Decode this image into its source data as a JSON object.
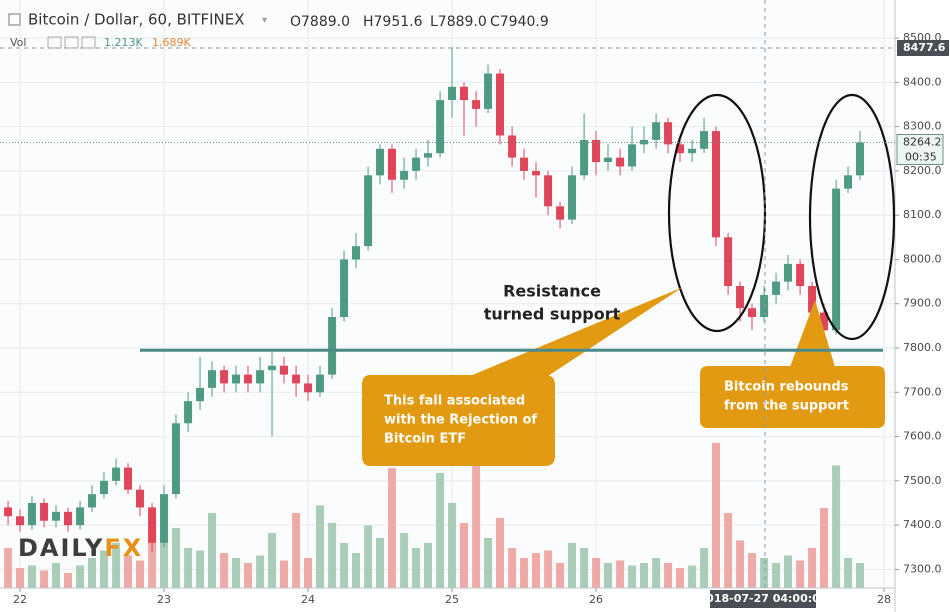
{
  "chart_data": {
    "type": "candlestick",
    "title": "Bitcoin / Dollar, 60, BITFINEX",
    "ohlc_labels": [
      "O7889.0",
      "H7951.6",
      "L7889.0",
      "C7940.9"
    ],
    "volume_label": "Vol",
    "volume_values": [
      "1.213K",
      "1.689K"
    ],
    "up_color": "#4f9a82",
    "down_color": "#e0465a",
    "volume_up_color": "#a9cdb7",
    "volume_down_color": "#eeaaa6",
    "xlim": [
      21.861,
      28.076
    ],
    "xticks": [
      22,
      23,
      24,
      25,
      26,
      28
    ],
    "ylim": [
      7258,
      8586
    ],
    "yticks": [
      {
        "value": 8500,
        "label": "8500.0"
      },
      {
        "value": 8400,
        "label": "8400.0"
      },
      {
        "value": 8300,
        "label": "8300.0"
      },
      {
        "value": 8200,
        "label": "8200.0"
      },
      {
        "value": 8100,
        "label": "8100.0"
      },
      {
        "value": 8000,
        "label": "8000.0"
      },
      {
        "value": 7900,
        "label": "7900.0"
      },
      {
        "value": 7800,
        "label": "7800.0"
      },
      {
        "value": 7700,
        "label": "7700.0"
      },
      {
        "value": 7600,
        "label": "7600.0"
      },
      {
        "value": 7500,
        "label": "7500.0"
      },
      {
        "value": 7400,
        "label": "7400.0"
      },
      {
        "value": 7300,
        "label": "7300.0"
      }
    ],
    "y2lim": [
      0,
      23.5
    ],
    "grid": true,
    "x": [
      21.917,
      22.0,
      22.083,
      22.167,
      22.25,
      22.333,
      22.417,
      22.5,
      22.583,
      22.667,
      22.75,
      22.833,
      22.917,
      23.0,
      23.083,
      23.167,
      23.25,
      23.333,
      23.417,
      23.5,
      23.583,
      23.667,
      23.75,
      23.833,
      23.917,
      24.0,
      24.083,
      24.167,
      24.25,
      24.333,
      24.417,
      24.5,
      24.583,
      24.667,
      24.75,
      24.833,
      24.917,
      25.0,
      25.083,
      25.167,
      25.25,
      25.333,
      25.417,
      25.5,
      25.583,
      25.667,
      25.75,
      25.833,
      25.917,
      26.0,
      26.083,
      26.167,
      26.25,
      26.333,
      26.417,
      26.5,
      26.583,
      26.667,
      26.75,
      26.833,
      26.917,
      27.0,
      27.083,
      27.167,
      27.25,
      27.333,
      27.417,
      27.5,
      27.583,
      27.667,
      27.75,
      27.833
    ],
    "open": [
      7440,
      7420,
      7400,
      7450,
      7410,
      7430,
      7400,
      7440,
      7470,
      7500,
      7530,
      7480,
      7440,
      7360,
      7470,
      7630,
      7680,
      7710,
      7750,
      7720,
      7740,
      7720,
      7750,
      7760,
      7740,
      7720,
      7700,
      7740,
      7870,
      8000,
      8030,
      8190,
      8250,
      8180,
      8200,
      8230,
      8240,
      8360,
      8390,
      8360,
      8340,
      8420,
      8280,
      8230,
      8200,
      8190,
      8120,
      8090,
      8190,
      8270,
      8220,
      8230,
      8210,
      8260,
      8270,
      8310,
      8260,
      8240,
      8250,
      8290,
      8050,
      7940,
      7890,
      7870,
      7920,
      7950,
      7990,
      7940,
      7880,
      7840,
      8160,
      8190
    ],
    "high": [
      7455,
      7435,
      7465,
      7460,
      7445,
      7440,
      7455,
      7490,
      7520,
      7550,
      7540,
      7490,
      7450,
      7490,
      7650,
      7700,
      7780,
      7770,
      7760,
      7760,
      7760,
      7780,
      7790,
      7780,
      7760,
      7740,
      7760,
      7890,
      8020,
      8060,
      8210,
      8260,
      8260,
      8230,
      8250,
      8270,
      8380,
      8480,
      8400,
      8380,
      8440,
      8430,
      8300,
      8250,
      8220,
      8200,
      8130,
      8210,
      8330,
      8290,
      8260,
      8250,
      8300,
      8300,
      8330,
      8320,
      8280,
      8270,
      8320,
      8300,
      8060,
      7950,
      7900,
      7940,
      7970,
      8010,
      8000,
      7950,
      7900,
      8180,
      8210,
      8290
    ],
    "low": [
      7400,
      7385,
      7390,
      7395,
      7395,
      7385,
      7390,
      7430,
      7460,
      7490,
      7470,
      7420,
      7340,
      7350,
      7460,
      7610,
      7660,
      7690,
      7700,
      7700,
      7700,
      7700,
      7600,
      7720,
      7690,
      7680,
      7690,
      7730,
      7860,
      7980,
      8020,
      8170,
      8150,
      8160,
      8180,
      8210,
      8230,
      8320,
      8280,
      8300,
      8330,
      8260,
      8210,
      8180,
      8140,
      8100,
      8070,
      8080,
      8180,
      8190,
      8200,
      8190,
      8200,
      8240,
      8250,
      8240,
      8220,
      8220,
      8240,
      8030,
      7920,
      7860,
      7840,
      7860,
      7900,
      7930,
      7920,
      7860,
      7830,
      7830,
      8150,
      8180
    ],
    "close": [
      7420,
      7400,
      7450,
      7410,
      7430,
      7400,
      7440,
      7470,
      7500,
      7530,
      7480,
      7440,
      7360,
      7470,
      7630,
      7680,
      7710,
      7750,
      7720,
      7740,
      7720,
      7750,
      7760,
      7740,
      7720,
      7700,
      7740,
      7870,
      8000,
      8030,
      8190,
      8250,
      8180,
      8200,
      8230,
      8240,
      8360,
      8390,
      8360,
      8340,
      8420,
      8280,
      8230,
      8200,
      8190,
      8120,
      8090,
      8190,
      8270,
      8220,
      8230,
      8210,
      8260,
      8270,
      8310,
      8260,
      8240,
      8250,
      8290,
      8050,
      7940,
      7890,
      7870,
      7920,
      7950,
      7990,
      7940,
      7880,
      7840,
      8160,
      8190,
      8264.2
    ],
    "volume": [
      1.6,
      0.8,
      0.9,
      0.7,
      1.0,
      0.6,
      0.9,
      1.2,
      1.5,
      1.8,
      1.3,
      1.1,
      2.5,
      2.0,
      2.4,
      1.6,
      1.5,
      3.0,
      1.4,
      1.2,
      1.0,
      1.3,
      2.2,
      1.1,
      3.0,
      1.2,
      3.3,
      2.6,
      1.8,
      1.4,
      2.5,
      2.0,
      4.8,
      2.2,
      1.6,
      1.8,
      4.6,
      3.4,
      2.6,
      5.3,
      2.0,
      2.8,
      1.6,
      1.2,
      1.4,
      1.5,
      1.0,
      1.8,
      1.6,
      1.2,
      1.0,
      1.1,
      0.9,
      1.0,
      1.2,
      1.0,
      0.8,
      0.9,
      1.6,
      5.8,
      3.0,
      1.9,
      1.4,
      1.2,
      1.0,
      1.3,
      1.1,
      1.6,
      3.2,
      4.9,
      1.2,
      1.0
    ],
    "support_level": 7795,
    "crosshair": {
      "price": 8477.6,
      "x_label": "2018-07-27 04:00:00"
    },
    "last_price": 8264.2,
    "countdown": "00:35",
    "annotations": {
      "resistance": [
        "Resistance",
        "turned support"
      ],
      "fall": [
        "This fall associated",
        "with the Rejection of",
        "Bitcoin ETF"
      ],
      "rebound": [
        "Bitcoin rebounds",
        "from the support"
      ]
    },
    "logo": [
      "DAILY",
      "FX"
    ]
  }
}
